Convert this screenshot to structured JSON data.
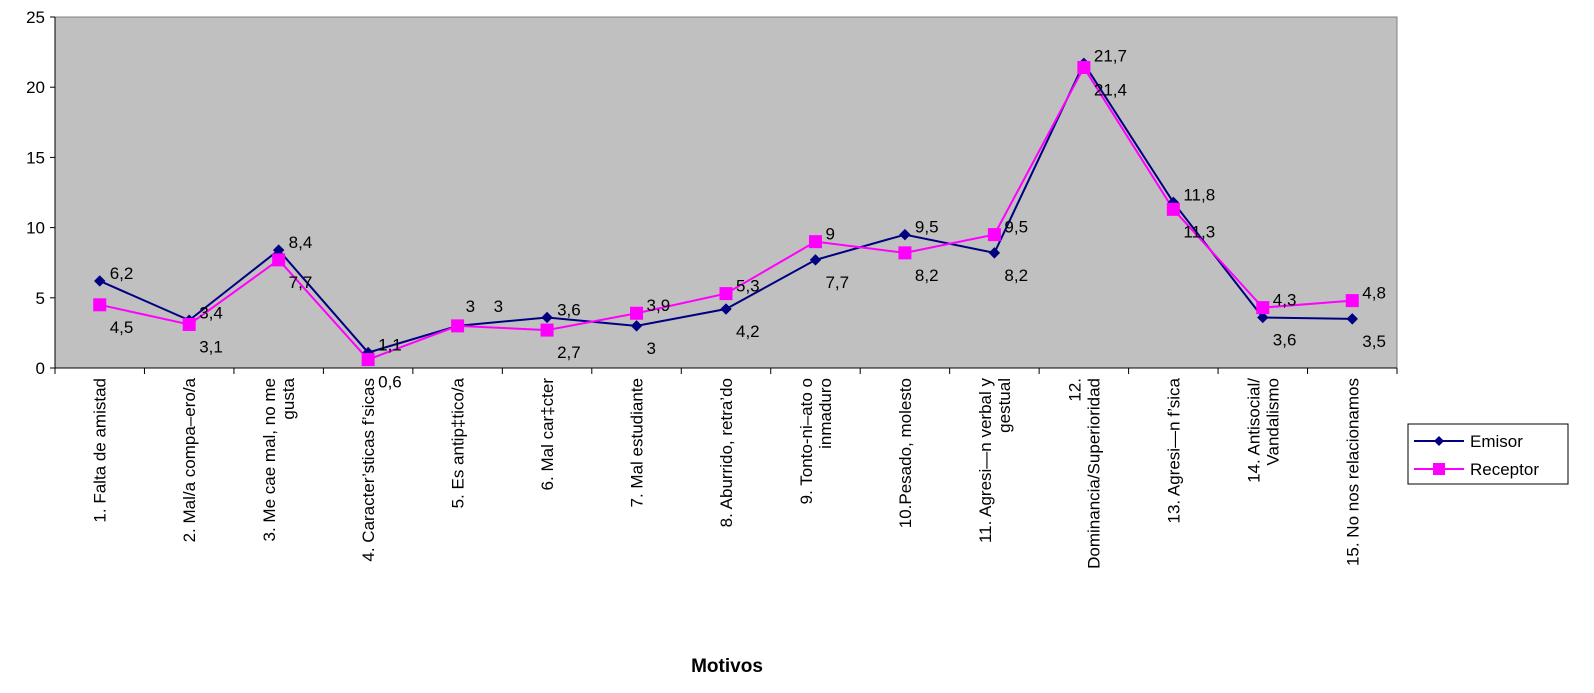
{
  "chart_data": {
    "type": "line",
    "title": "",
    "xlabel": "Motivos",
    "ylabel": "",
    "ylim": [
      0,
      25
    ],
    "yticks": [
      0,
      5,
      10,
      15,
      20,
      25
    ],
    "grid": false,
    "legend_position": "right",
    "plot_background": "#c0c0c0",
    "categories": [
      [
        "1. Falta de amistad"
      ],
      [
        "2. Mal/a compa–ero/a"
      ],
      [
        "3. Me cae mal, no me",
        "gusta"
      ],
      [
        "4. Caracter’sticas f’sicas"
      ],
      [
        "5. Es antip‡tico/a"
      ],
      [
        "6. Mal car‡cter"
      ],
      [
        "7. Mal estudiante"
      ],
      [
        "8. Aburrido, retra’do"
      ],
      [
        "9. Tonto-ni–ato o",
        "inmaduro"
      ],
      [
        "10.Pesado, molesto"
      ],
      [
        "11. Agresi—n verbal y",
        "gestual"
      ],
      [
        "12.",
        "Dominancia/Superioridad"
      ],
      [
        "13. Agresi—n f’sica"
      ],
      [
        "14. Antisocial/",
        "Vandalismo"
      ],
      [
        "15. No nos relacionamos"
      ]
    ],
    "series": [
      {
        "name": "Emisor",
        "color": "#000080",
        "marker": "diamond",
        "values": [
          6.2,
          3.4,
          8.4,
          1.1,
          3,
          3.6,
          3,
          4.2,
          7.7,
          9.5,
          8.2,
          21.7,
          11.8,
          3.6,
          3.5
        ],
        "labels": [
          "6,2",
          "3,4",
          "8,4",
          "1,1",
          "3",
          "3,6",
          "3",
          "4,2",
          "7,7",
          "9,5",
          "8,2",
          "21,7",
          "11,8",
          "3,6",
          "3,5"
        ]
      },
      {
        "name": "Receptor",
        "color": "#ff00ff",
        "marker": "square",
        "values": [
          4.5,
          3.1,
          7.7,
          0.6,
          3,
          2.7,
          3.9,
          5.3,
          9,
          8.2,
          9.5,
          21.4,
          11.3,
          4.3,
          4.8
        ],
        "labels": [
          "4,5",
          "3,1",
          "7,7",
          "0,6",
          "3",
          "2,7",
          "3,9",
          "5,3",
          "9",
          "8,2",
          "9,5",
          "21,4",
          "11,3",
          "4,3",
          "4,8"
        ]
      }
    ]
  }
}
